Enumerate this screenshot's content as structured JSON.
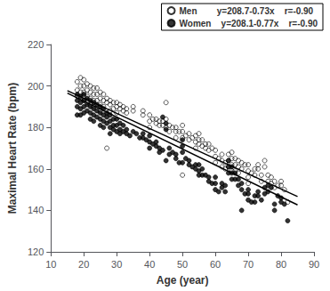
{
  "chart_data": {
    "type": "scatter",
    "xlabel": "Age (year)",
    "ylabel": "Maximal Heart Rate (bpm)",
    "xlim": [
      10,
      90
    ],
    "ylim": [
      120,
      220
    ],
    "xticks": [
      10,
      20,
      30,
      40,
      50,
      60,
      70,
      80,
      90
    ],
    "yticks": [
      120,
      140,
      160,
      180,
      200,
      220
    ],
    "grid": false,
    "legend": "upper right",
    "series": [
      {
        "name": "Men        y=208.7-0.73x    r=-0.90",
        "type": "scatter",
        "marker": "circle_open",
        "color": "#000000",
        "x": [
          18,
          18,
          18,
          19,
          19,
          19,
          19,
          20,
          20,
          20,
          20,
          20,
          21,
          21,
          21,
          21,
          22,
          22,
          22,
          22,
          23,
          23,
          23,
          23,
          24,
          24,
          24,
          25,
          25,
          25,
          25,
          26,
          26,
          26,
          27,
          27,
          27,
          28,
          28,
          28,
          29,
          29,
          30,
          30,
          30,
          31,
          31,
          32,
          32,
          33,
          33,
          35,
          35,
          38,
          38,
          40,
          40,
          40,
          41,
          42,
          42,
          43,
          43,
          44,
          44,
          45,
          45,
          45,
          46,
          46,
          47,
          48,
          48,
          48,
          49,
          50,
          50,
          50,
          50,
          51,
          52,
          52,
          53,
          54,
          54,
          54,
          55,
          55,
          55,
          56,
          56,
          57,
          57,
          58,
          58,
          59,
          60,
          60,
          60,
          61,
          62,
          62,
          62,
          63,
          63,
          64,
          64,
          64,
          65,
          65,
          65,
          65,
          66,
          66,
          66,
          67,
          67,
          67,
          68,
          68,
          69,
          70,
          70,
          70,
          70,
          71,
          72,
          72,
          73,
          73,
          74,
          74,
          75,
          75,
          76,
          76,
          77,
          77,
          78,
          78,
          79,
          80,
          80,
          81,
          82
        ],
        "values": [
          202,
          198,
          195,
          204,
          200,
          197,
          194,
          203,
          200,
          197,
          195,
          193,
          201,
          198,
          195,
          192,
          200,
          197,
          194,
          191,
          199,
          196,
          193,
          190,
          199,
          196,
          193,
          197,
          194,
          191,
          188,
          196,
          193,
          190,
          194,
          192,
          170,
          193,
          191,
          188,
          192,
          189,
          192,
          190,
          187,
          191,
          189,
          190,
          188,
          189,
          187,
          190,
          188,
          188,
          186,
          186,
          183,
          180,
          184,
          184,
          182,
          183,
          181,
          183,
          181,
          192,
          184,
          180,
          181,
          178,
          180,
          180,
          178,
          175,
          178,
          181,
          178,
          175,
          157,
          176,
          177,
          174,
          175,
          176,
          173,
          170,
          177,
          174,
          172,
          174,
          171,
          172,
          170,
          172,
          169,
          170,
          169,
          166,
          163,
          165,
          167,
          164,
          161,
          163,
          160,
          167,
          164,
          161,
          168,
          165,
          162,
          159,
          165,
          162,
          159,
          164,
          161,
          158,
          163,
          160,
          162,
          162,
          159,
          156,
          153,
          158,
          160,
          157,
          162,
          160,
          157,
          154,
          164,
          161,
          157,
          154,
          156,
          153,
          154,
          151,
          152,
          154,
          152,
          150,
          144
        ]
      },
      {
        "name": "Women    y=208.1-0.77x    r=-0.90",
        "type": "scatter",
        "marker": "circle",
        "color": "#000000",
        "x": [
          18,
          18,
          18,
          18,
          19,
          19,
          19,
          19,
          20,
          20,
          20,
          20,
          21,
          21,
          21,
          22,
          22,
          22,
          22,
          23,
          23,
          23,
          23,
          24,
          24,
          24,
          25,
          25,
          25,
          25,
          26,
          26,
          26,
          26,
          27,
          27,
          27,
          28,
          28,
          28,
          28,
          29,
          29,
          29,
          30,
          30,
          30,
          31,
          31,
          31,
          32,
          32,
          33,
          33,
          34,
          35,
          36,
          37,
          38,
          38,
          39,
          40,
          40,
          40,
          41,
          42,
          42,
          43,
          43,
          44,
          44,
          45,
          45,
          45,
          46,
          46,
          47,
          48,
          48,
          49,
          50,
          50,
          50,
          50,
          51,
          52,
          52,
          53,
          54,
          54,
          55,
          55,
          55,
          56,
          56,
          57,
          58,
          58,
          59,
          60,
          60,
          60,
          61,
          62,
          62,
          63,
          63,
          64,
          64,
          64,
          65,
          65,
          65,
          66,
          66,
          67,
          67,
          68,
          68,
          68,
          69,
          70,
          70,
          70,
          71,
          72,
          72,
          73,
          73,
          74,
          75,
          75,
          76,
          76,
          77,
          78,
          78,
          79,
          80,
          80,
          81,
          82
        ],
        "values": [
          196,
          193,
          190,
          186,
          195,
          192,
          189,
          186,
          196,
          193,
          190,
          187,
          194,
          191,
          188,
          193,
          190,
          187,
          184,
          192,
          189,
          186,
          183,
          191,
          188,
          185,
          190,
          187,
          184,
          181,
          189,
          186,
          183,
          180,
          187,
          185,
          182,
          186,
          183,
          180,
          177,
          184,
          181,
          179,
          184,
          181,
          178,
          182,
          179,
          177,
          181,
          178,
          179,
          177,
          176,
          178,
          177,
          175,
          177,
          175,
          174,
          176,
          173,
          170,
          172,
          173,
          171,
          170,
          168,
          185,
          169,
          182,
          179,
          164,
          170,
          167,
          168,
          167,
          165,
          163,
          174,
          171,
          168,
          163,
          165,
          164,
          162,
          161,
          162,
          160,
          162,
          159,
          157,
          160,
          157,
          157,
          156,
          154,
          153,
          156,
          153,
          150,
          149,
          153,
          151,
          152,
          149,
          164,
          161,
          158,
          161,
          158,
          155,
          158,
          155,
          155,
          152,
          153,
          150,
          140,
          148,
          150,
          148,
          145,
          144,
          147,
          144,
          149,
          147,
          145,
          151,
          148,
          152,
          149,
          151,
          143,
          140,
          147,
          146,
          144,
          143,
          135
        ]
      },
      {
        "type": "line",
        "line_style": "solid",
        "color": "#000000",
        "x": [
          15,
          85
        ],
        "values": [
          197.75,
          146.65
        ]
      },
      {
        "type": "line",
        "line_style": "solid",
        "color": "#000000",
        "x": [
          15,
          85
        ],
        "values": [
          196.55,
          142.65
        ]
      }
    ]
  }
}
